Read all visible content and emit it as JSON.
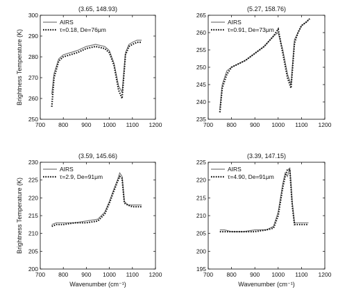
{
  "colors": {
    "airs": "#7a7a7a",
    "model": "#111111",
    "axis": "#000000"
  },
  "shared": {
    "ylabel": "Brightness Temperature (K)",
    "xlabel": "Wavenumber (cm",
    "xlabel_sup": "-1",
    "xlabel_end": ")"
  },
  "chart_data": [
    {
      "type": "line",
      "title": "(3.65, 148.93)",
      "xlim": [
        700,
        1200
      ],
      "ylim": [
        250,
        300
      ],
      "xticks": [
        "700",
        "800",
        "900",
        "1000",
        "1100",
        "1200"
      ],
      "yticks": [
        "250",
        "260",
        "270",
        "280",
        "290",
        "300"
      ],
      "xticks_v": [
        700,
        800,
        900,
        1000,
        1100,
        1200
      ],
      "yticks_v": [
        250,
        260,
        270,
        280,
        290,
        300
      ],
      "xlabel": "",
      "ylabel": "Brightness Temperature (K)",
      "legend_pos": "top-left",
      "grid": false,
      "series": [
        {
          "name": "AIRS",
          "style": "solid",
          "x": [
            750,
            760,
            780,
            800,
            830,
            860,
            900,
            940,
            980,
            1000,
            1020,
            1040,
            1055,
            1070,
            1085,
            1100,
            1120,
            1140
          ],
          "y": [
            262,
            272,
            279,
            281,
            282,
            283,
            285,
            286,
            285,
            283,
            277,
            266,
            263,
            282,
            286,
            287,
            288,
            288
          ]
        },
        {
          "name": "τ=0.18, De=76μm",
          "style": "dotted",
          "x": [
            750,
            760,
            780,
            800,
            830,
            860,
            900,
            940,
            980,
            1000,
            1020,
            1040,
            1055,
            1070,
            1085,
            1100,
            1120,
            1140
          ],
          "y": [
            256,
            270,
            278,
            280,
            281,
            282,
            284,
            285,
            284,
            282,
            276,
            264,
            260,
            281,
            285,
            286,
            287,
            287
          ]
        }
      ]
    },
    {
      "type": "line",
      "title": "(5.27, 158.76)",
      "xlim": [
        700,
        1200
      ],
      "ylim": [
        235,
        265
      ],
      "xticks": [
        "700",
        "800",
        "900",
        "1000",
        "1100",
        "1200"
      ],
      "yticks": [
        "235",
        "240",
        "245",
        "250",
        "255",
        "260",
        "265"
      ],
      "xticks_v": [
        700,
        800,
        900,
        1000,
        1100,
        1200
      ],
      "yticks_v": [
        235,
        240,
        245,
        250,
        255,
        260,
        265
      ],
      "xlabel": "",
      "ylabel": "",
      "legend_pos": "top-left",
      "grid": false,
      "series": [
        {
          "name": "AIRS",
          "style": "solid",
          "x": [
            750,
            760,
            780,
            800,
            830,
            860,
            900,
            940,
            980,
            1000,
            1020,
            1040,
            1055,
            1070,
            1085,
            1100,
            1120,
            1135
          ],
          "y": [
            238,
            245,
            249,
            250,
            251,
            252,
            254,
            256,
            259,
            260,
            255,
            248,
            245,
            258,
            260,
            262,
            263,
            264
          ]
        },
        {
          "name": "τ=0.91, De=73μm",
          "style": "dotted",
          "x": [
            750,
            760,
            780,
            800,
            830,
            860,
            900,
            940,
            980,
            1000,
            1020,
            1040,
            1055,
            1070,
            1085,
            1100,
            1120,
            1135
          ],
          "y": [
            237,
            244,
            248,
            250,
            251,
            252,
            254,
            256,
            259,
            261,
            254,
            247,
            244,
            257,
            260,
            262,
            263,
            264
          ]
        }
      ]
    },
    {
      "type": "line",
      "title": "(3.59, 145.66)",
      "xlim": [
        700,
        1200
      ],
      "ylim": [
        200,
        230
      ],
      "xticks": [
        "700",
        "800",
        "900",
        "1000",
        "1100",
        "1200"
      ],
      "yticks": [
        "200",
        "205",
        "210",
        "215",
        "220",
        "225",
        "230"
      ],
      "xticks_v": [
        700,
        800,
        900,
        1000,
        1100,
        1200
      ],
      "yticks_v": [
        200,
        205,
        210,
        215,
        220,
        225,
        230
      ],
      "xlabel": "Wavenumber (cm⁻¹)",
      "ylabel": "Brightness Temperature (K)",
      "legend_pos": "top-left",
      "grid": false,
      "series": [
        {
          "name": "AIRS",
          "style": "solid",
          "x": [
            750,
            770,
            800,
            850,
            900,
            950,
            980,
            1000,
            1020,
            1035,
            1045,
            1055,
            1065,
            1080,
            1100,
            1140
          ],
          "y": [
            212.5,
            213,
            213,
            213,
            213.5,
            214,
            216,
            219,
            222.5,
            225,
            227,
            226,
            219,
            218,
            218,
            218
          ]
        },
        {
          "name": "τ=2.9, De=91μm",
          "style": "dotted",
          "x": [
            750,
            770,
            800,
            850,
            900,
            950,
            980,
            1000,
            1020,
            1035,
            1045,
            1055,
            1065,
            1080,
            1100,
            1140
          ],
          "y": [
            212,
            212.5,
            212.5,
            213,
            213,
            213.5,
            215.5,
            218.5,
            222,
            224.5,
            226,
            225.5,
            218.5,
            218,
            217.5,
            217.5
          ]
        }
      ]
    },
    {
      "type": "line",
      "title": "(3.39, 147.15)",
      "xlim": [
        700,
        1200
      ],
      "ylim": [
        195,
        225
      ],
      "xticks": [
        "700",
        "800",
        "900",
        "1000",
        "1100",
        "1200"
      ],
      "yticks": [
        "195",
        "200",
        "205",
        "210",
        "215",
        "220",
        "225"
      ],
      "xticks_v": [
        700,
        800,
        900,
        1000,
        1100,
        1200
      ],
      "yticks_v": [
        195,
        200,
        205,
        210,
        215,
        220,
        225
      ],
      "xlabel": "Wavenumber (cm⁻¹)",
      "ylabel": "",
      "legend_pos": "top-left",
      "grid": false,
      "series": [
        {
          "name": "AIRS",
          "style": "solid",
          "x": [
            750,
            770,
            800,
            850,
            900,
            950,
            980,
            1000,
            1020,
            1030,
            1040,
            1050,
            1060,
            1070,
            1090,
            1130
          ],
          "y": [
            206,
            206,
            205.5,
            205.5,
            206,
            206,
            207,
            211,
            219,
            222,
            221,
            223.5,
            214,
            208,
            208,
            208
          ]
        },
        {
          "name": "τ=4.90, De=91μm",
          "style": "dotted",
          "x": [
            750,
            770,
            800,
            850,
            900,
            950,
            980,
            1000,
            1020,
            1030,
            1040,
            1050,
            1060,
            1070,
            1090,
            1130
          ],
          "y": [
            205.5,
            205.5,
            205.5,
            205.5,
            205.5,
            206,
            206.5,
            210,
            218,
            221,
            223,
            223,
            213,
            207.5,
            207.5,
            207.5
          ]
        }
      ]
    }
  ]
}
